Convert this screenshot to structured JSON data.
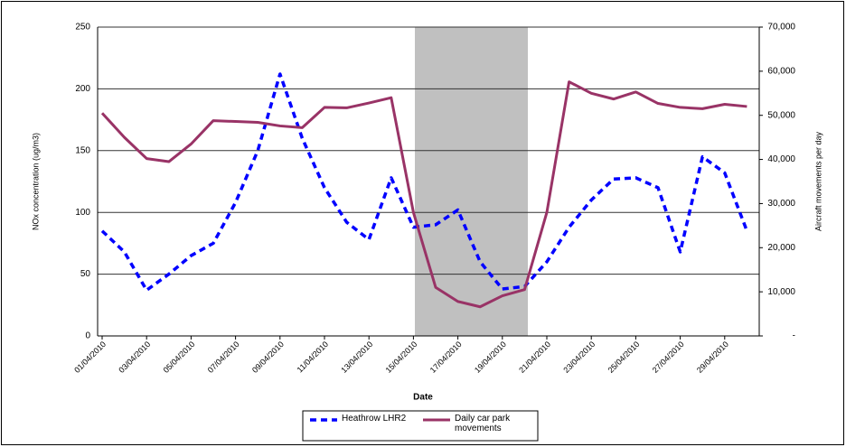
{
  "chart_data": {
    "type": "line",
    "x_label": "Date",
    "y_label": "NOx concentration (ug/m3)",
    "y2_label": "Aircraft movements per day",
    "categories": [
      "01/04/2010",
      null,
      "03/04/2010",
      null,
      "05/04/2010",
      null,
      "07/04/2010",
      null,
      "09/04/2010",
      null,
      "11/04/2010",
      null,
      "13/04/2010",
      null,
      "15/04/2010",
      null,
      "17/04/2010",
      null,
      "19/04/2010",
      null,
      "21/04/2010",
      null,
      "23/04/2010",
      null,
      "25/04/2010",
      null,
      "27/04/2010",
      null,
      "29/04/2010",
      null
    ],
    "ylim": [
      0,
      250
    ],
    "yticks": [
      0,
      50,
      100,
      150,
      200,
      250
    ],
    "y2lim": [
      0,
      70000
    ],
    "y2ticks": [
      {
        "value": 0,
        "label": "-"
      },
      {
        "value": 10000,
        "label": "10,000"
      },
      {
        "value": 20000,
        "label": "20,000"
      },
      {
        "value": 30000,
        "label": "30,000"
      },
      {
        "value": 40000,
        "label": "40,000"
      },
      {
        "value": 50000,
        "label": "50,000"
      },
      {
        "value": 60000,
        "label": "60,000"
      },
      {
        "value": 70000,
        "label": "70,000"
      }
    ],
    "grid": true,
    "legend": "bottom",
    "series": [
      {
        "name": "Heathrow LHR2",
        "color": "#0000ff",
        "dashed": true,
        "values": [
          85,
          68,
          37,
          50,
          65,
          75,
          108,
          150,
          212,
          160,
          120,
          92,
          78,
          128,
          88,
          90,
          102,
          60,
          38,
          40,
          60,
          88,
          110,
          127,
          128,
          120,
          68,
          145,
          132,
          85
        ]
      },
      {
        "name": "Daily car park movements",
        "color": "#993366",
        "axis": "y2",
        "values": [
          50500,
          45000,
          40200,
          39500,
          43500,
          48800,
          48600,
          48400,
          47600,
          47200,
          51800,
          51700,
          52800,
          54000,
          28000,
          11000,
          7800,
          6600,
          9100,
          10500,
          28000,
          57600,
          55000,
          53700,
          55300,
          52700,
          51800,
          51500,
          52500,
          52000
        ]
      }
    ]
  }
}
